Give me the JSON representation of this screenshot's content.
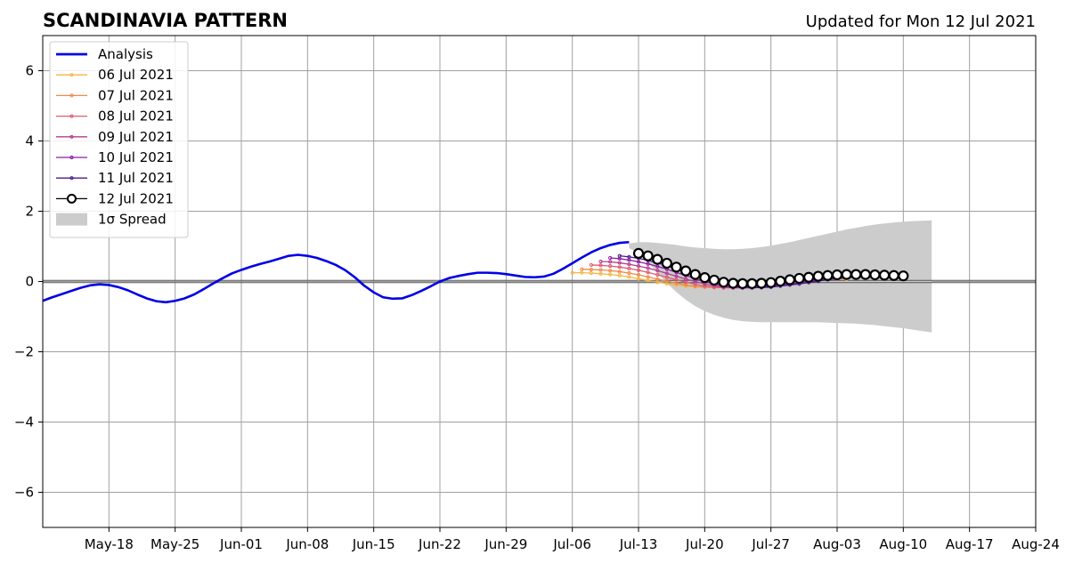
{
  "chart_data": {
    "type": "line",
    "title": "SCANDINAVIA PATTERN",
    "subtitle": "Updated for Mon 12 Jul 2021",
    "xlabel": "",
    "ylabel": "",
    "xlim": [
      "2021-05-11",
      "2021-08-24"
    ],
    "ylim": [
      -7,
      7
    ],
    "grid": true,
    "legend_position": "top-left",
    "x_ticks": [
      "May-18",
      "May-25",
      "Jun-01",
      "Jun-08",
      "Jun-15",
      "Jun-22",
      "Jun-29",
      "Jul-06",
      "Jul-13",
      "Jul-20",
      "Jul-27",
      "Aug-03",
      "Aug-10",
      "Aug-17",
      "Aug-24"
    ],
    "x_tick_dates": [
      "2021-05-18",
      "2021-05-25",
      "2021-06-01",
      "2021-06-08",
      "2021-06-15",
      "2021-06-22",
      "2021-06-29",
      "2021-07-06",
      "2021-07-13",
      "2021-07-20",
      "2021-07-27",
      "2021-08-03",
      "2021-08-10",
      "2021-08-17",
      "2021-08-24"
    ],
    "y_ticks": [
      {
        "label": "6",
        "value": 6
      },
      {
        "label": "4",
        "value": 4
      },
      {
        "label": "2",
        "value": 2
      },
      {
        "label": "0",
        "value": 0
      },
      {
        "label": "−2",
        "value": -2
      },
      {
        "label": "−4",
        "value": -4
      },
      {
        "label": "−6",
        "value": -6
      }
    ],
    "analysis": {
      "name": "Analysis",
      "color": "#0000e6",
      "start": "2021-05-11",
      "values": [
        -0.55,
        -0.45,
        -0.36,
        -0.27,
        -0.18,
        -0.11,
        -0.08,
        -0.1,
        -0.16,
        -0.25,
        -0.37,
        -0.48,
        -0.56,
        -0.59,
        -0.55,
        -0.48,
        -0.37,
        -0.22,
        -0.06,
        0.09,
        0.23,
        0.33,
        0.42,
        0.5,
        0.57,
        0.65,
        0.73,
        0.76,
        0.73,
        0.67,
        0.58,
        0.47,
        0.32,
        0.12,
        -0.12,
        -0.31,
        -0.45,
        -0.49,
        -0.48,
        -0.39,
        -0.27,
        -0.14,
        0.0,
        0.1,
        0.16,
        0.21,
        0.25,
        0.25,
        0.24,
        0.21,
        0.17,
        0.13,
        0.12,
        0.14,
        0.22,
        0.36,
        0.52,
        0.68,
        0.83,
        0.95,
        1.04,
        1.1,
        1.12
      ]
    },
    "forecasts": [
      {
        "name": "06 Jul 2021",
        "color": "#f5b642",
        "start": "2021-07-06",
        "values": [
          0.25,
          0.25,
          0.24,
          0.22,
          0.2,
          0.17,
          0.13,
          0.08,
          0.03,
          -0.02,
          -0.06,
          -0.1,
          -0.13,
          -0.15,
          -0.16,
          -0.16,
          -0.15,
          -0.13,
          -0.11,
          -0.09,
          -0.06,
          -0.04,
          -0.02,
          0.0,
          0.02,
          0.04,
          0.05,
          0.06,
          0.07,
          0.07
        ]
      },
      {
        "name": "07 Jul 2021",
        "color": "#f08a48",
        "start": "2021-07-07",
        "values": [
          0.35,
          0.34,
          0.33,
          0.31,
          0.28,
          0.24,
          0.19,
          0.13,
          0.07,
          0.01,
          -0.05,
          -0.1,
          -0.14,
          -0.16,
          -0.17,
          -0.17,
          -0.15,
          -0.13,
          -0.1,
          -0.07,
          -0.04,
          -0.01,
          0.02,
          0.04,
          0.06,
          0.08,
          0.09,
          0.1,
          0.11,
          0.11
        ]
      },
      {
        "name": "08 Jul 2021",
        "color": "#de5b6f",
        "start": "2021-07-08",
        "values": [
          0.47,
          0.46,
          0.44,
          0.41,
          0.37,
          0.32,
          0.26,
          0.19,
          0.12,
          0.05,
          -0.02,
          -0.08,
          -0.13,
          -0.16,
          -0.18,
          -0.18,
          -0.17,
          -0.15,
          -0.12,
          -0.09,
          -0.06,
          -0.02,
          0.01,
          0.04,
          0.07,
          0.09,
          0.11,
          0.12,
          0.13,
          0.14
        ]
      },
      {
        "name": "09 Jul 2021",
        "color": "#b63b8f",
        "start": "2021-07-09",
        "values": [
          0.57,
          0.56,
          0.53,
          0.49,
          0.44,
          0.38,
          0.31,
          0.23,
          0.15,
          0.07,
          0.0,
          -0.07,
          -0.12,
          -0.16,
          -0.18,
          -0.18,
          -0.17,
          -0.15,
          -0.12,
          -0.09,
          -0.05,
          -0.02,
          0.02,
          0.05,
          0.08,
          0.1,
          0.12,
          0.14,
          0.15,
          0.15
        ]
      },
      {
        "name": "10 Jul 2021",
        "color": "#8b1aa3",
        "start": "2021-07-10",
        "values": [
          0.67,
          0.65,
          0.61,
          0.56,
          0.5,
          0.43,
          0.35,
          0.26,
          0.17,
          0.08,
          0.0,
          -0.07,
          -0.13,
          -0.16,
          -0.18,
          -0.18,
          -0.17,
          -0.14,
          -0.11,
          -0.08,
          -0.04,
          0.0,
          0.03,
          0.07,
          0.1,
          0.12,
          0.14,
          0.15,
          0.16,
          0.17
        ]
      },
      {
        "name": "11 Jul 2021",
        "color": "#4b1a8c",
        "start": "2021-07-11",
        "values": [
          0.73,
          0.7,
          0.66,
          0.6,
          0.53,
          0.45,
          0.36,
          0.27,
          0.18,
          0.09,
          0.01,
          -0.06,
          -0.11,
          -0.15,
          -0.17,
          -0.17,
          -0.16,
          -0.13,
          -0.1,
          -0.07,
          -0.03,
          0.01,
          0.05,
          0.08,
          0.11,
          0.13,
          0.15,
          0.16,
          0.17,
          0.17
        ]
      },
      {
        "name": "12 Jul 2021",
        "color": "#000000",
        "marker": "open-circle",
        "start": "2021-07-13",
        "values": [
          0.8,
          0.73,
          0.63,
          0.52,
          0.41,
          0.3,
          0.2,
          0.11,
          0.04,
          -0.02,
          -0.05,
          -0.06,
          -0.06,
          -0.05,
          -0.03,
          0.01,
          0.05,
          0.09,
          0.12,
          0.15,
          0.17,
          0.19,
          0.2,
          0.2,
          0.2,
          0.19,
          0.18,
          0.17,
          0.16
        ]
      }
    ],
    "spread": {
      "name": "1σ Spread",
      "color": "#cccccc",
      "start": "2021-07-12",
      "upper": [
        1.08,
        1.12,
        1.12,
        1.1,
        1.07,
        1.04,
        1.0,
        0.97,
        0.95,
        0.93,
        0.92,
        0.92,
        0.93,
        0.95,
        0.98,
        1.02,
        1.07,
        1.12,
        1.18,
        1.24,
        1.3,
        1.36,
        1.42,
        1.48,
        1.53,
        1.58,
        1.62,
        1.65,
        1.68,
        1.7,
        1.72,
        1.73,
        1.74
      ],
      "lower": [
        0.95,
        0.8,
        0.55,
        0.25,
        -0.05,
        -0.3,
        -0.52,
        -0.7,
        -0.84,
        -0.95,
        -1.03,
        -1.09,
        -1.13,
        -1.15,
        -1.16,
        -1.16,
        -1.16,
        -1.16,
        -1.16,
        -1.16,
        -1.16,
        -1.17,
        -1.18,
        -1.19,
        -1.2,
        -1.22,
        -1.24,
        -1.27,
        -1.3,
        -1.33,
        -1.37,
        -1.41,
        -1.45
      ]
    }
  }
}
